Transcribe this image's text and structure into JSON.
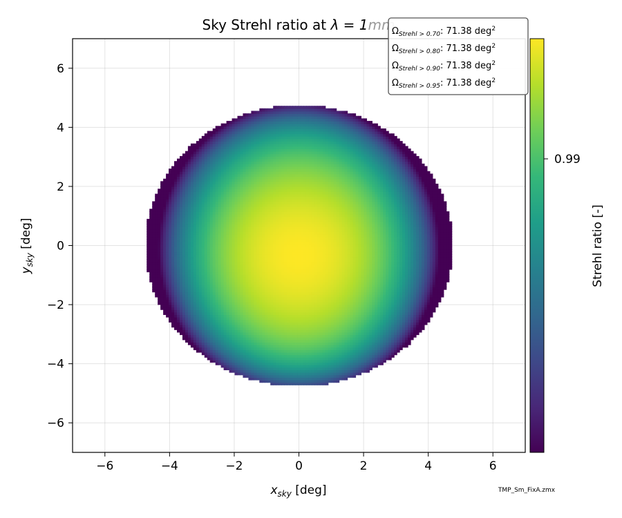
{
  "chart_data": {
    "type": "heatmap",
    "title_text": "Sky Strehl ratio at ",
    "title_symbol": "λ = 1",
    "title_unit": "mm",
    "xlabel": {
      "main": "x",
      "sub": "sky",
      "unit": " [deg]"
    },
    "ylabel": {
      "main": "y",
      "sub": "sky",
      "unit": " [deg]"
    },
    "xlim": [
      -7,
      7
    ],
    "ylim": [
      -7,
      7
    ],
    "xticks": [
      -6,
      -4,
      -2,
      0,
      2,
      4,
      6
    ],
    "yticks": [
      -6,
      -4,
      -2,
      0,
      2,
      4,
      6
    ],
    "xtick_labels": [
      "−6",
      "−4",
      "−2",
      "0",
      "2",
      "4",
      "6"
    ],
    "ytick_labels": [
      "−6",
      "−4",
      "−2",
      "0",
      "2",
      "4",
      "6"
    ],
    "grid": true,
    "field": {
      "shape": "circle",
      "radius_deg": 4.75,
      "center": [
        0,
        0
      ],
      "peak_center": [
        0,
        -0.3
      ],
      "description": "maximum near center, minimum at left and right edges"
    },
    "colorbar": {
      "label": "Strehl ratio [-]",
      "ticks": [
        "0.99"
      ],
      "colormap": "viridis"
    },
    "legend": {
      "placement": "top-right",
      "entries": [
        {
          "symbol": "Ω",
          "sub": "Strehl > 0.70",
          "value": ": 71.38 deg",
          "sup": "2"
        },
        {
          "symbol": "Ω",
          "sub": "Strehl > 0.80",
          "value": ": 71.38 deg",
          "sup": "2"
        },
        {
          "symbol": "Ω",
          "sub": "Strehl > 0.90",
          "value": ": 71.38 deg",
          "sup": "2"
        },
        {
          "symbol": "Ω",
          "sub": "Strehl > 0.95",
          "value": ": 71.38 deg",
          "sup": "2"
        }
      ]
    },
    "source_file": "TMP_Sm_FixA.zmx"
  },
  "colors": {
    "viridis": [
      "#440154",
      "#482878",
      "#3e4989",
      "#31688e",
      "#26828e",
      "#1f9e89",
      "#35b779",
      "#6ece58",
      "#b5de2b",
      "#fde725"
    ]
  }
}
